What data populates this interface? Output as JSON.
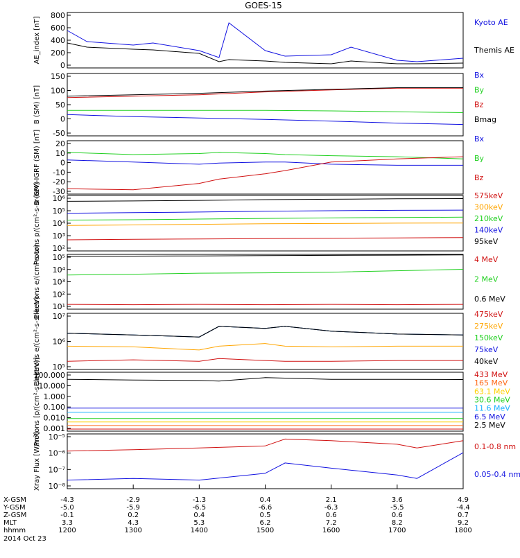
{
  "title": "GOES-15",
  "chart_data": [
    {
      "type": "line",
      "ylabel": "AE_index [nT]",
      "yticks": [
        "800",
        "600",
        "400",
        "200",
        "0"
      ],
      "ylim": [
        0,
        800
      ],
      "x": [
        1200,
        1230,
        1300,
        1330,
        1400,
        1430,
        1445,
        1500,
        1530,
        1600,
        1630,
        1700,
        1730,
        1800
      ],
      "series": [
        {
          "name": "Kyoto AE",
          "color": "#1010e0",
          "values": [
            540,
            380,
            330,
            360,
            250,
            150,
            650,
            250,
            170,
            190,
            300,
            110,
            90,
            140
          ]
        },
        {
          "name": "Themis AE",
          "color": "#000000",
          "values": [
            360,
            300,
            270,
            260,
            210,
            90,
            120,
            100,
            80,
            60,
            100,
            60,
            60,
            70
          ]
        }
      ]
    },
    {
      "type": "line",
      "ylabel": "B (SM) [nT]",
      "yticks": [
        "150",
        "100",
        "50",
        "0",
        "-50"
      ],
      "ylim": [
        -60,
        160
      ],
      "x": [
        1200,
        1300,
        1400,
        1500,
        1600,
        1700,
        1800
      ],
      "series": [
        {
          "name": "Bx",
          "color": "#1010e0",
          "values": [
            15,
            8,
            3,
            -2,
            -8,
            -15,
            -20
          ]
        },
        {
          "name": "By",
          "color": "#20d020",
          "values": [
            30,
            30,
            30,
            30,
            28,
            25,
            22
          ]
        },
        {
          "name": "Bz",
          "color": "#d01010",
          "values": [
            75,
            80,
            85,
            95,
            102,
            108,
            108
          ]
        },
        {
          "name": "Bmag",
          "color": "#000000",
          "values": [
            80,
            85,
            90,
            98,
            104,
            110,
            110
          ]
        }
      ]
    },
    {
      "type": "line",
      "ylabel": "B (SM)-IGRF (SM) [nT]",
      "yticks": [
        "20",
        "10",
        "0",
        "-10",
        "-20",
        "-30"
      ],
      "ylim": [
        -30,
        20
      ],
      "x": [
        1200,
        1300,
        1400,
        1430,
        1500,
        1530,
        1600,
        1700,
        1800
      ],
      "series": [
        {
          "name": "Bx",
          "color": "#1010e0",
          "values": [
            2,
            0,
            -2,
            -1,
            0,
            0,
            -2,
            -3,
            -3
          ]
        },
        {
          "name": "By",
          "color": "#20d020",
          "values": [
            9,
            7,
            8,
            9,
            8,
            7,
            6,
            5,
            3
          ]
        },
        {
          "name": "Bz",
          "color": "#d01010",
          "values": [
            -25,
            -26,
            -20,
            -16,
            -11,
            -8,
            0,
            3,
            5
          ]
        }
      ]
    },
    {
      "type": "line",
      "ylabel": "Protons p/(cm²-s-sr-keV)",
      "yscale": "log",
      "yticks": [
        "10⁶",
        "10⁵",
        "10⁴",
        "10³",
        "10²"
      ],
      "ylim": [
        1,
        6
      ],
      "x": [
        1200,
        1300,
        1400,
        1500,
        1600,
        1700,
        1800
      ],
      "series": [
        {
          "name": "575keV",
          "color": "#d01010",
          "values": [
            100,
            110,
            120,
            130,
            140,
            150,
            160
          ]
        },
        {
          "name": "300keV",
          "color": "#ffa500",
          "values": [
            2000,
            2200,
            2500,
            2800,
            3000,
            3200,
            3300
          ]
        },
        {
          "name": "210keV",
          "color": "#20d020",
          "values": [
            6000,
            6500,
            7500,
            8500,
            9500,
            10500,
            11000
          ]
        },
        {
          "name": "140keV",
          "color": "#1010e0",
          "values": [
            25000,
            28000,
            32000,
            38000,
            42000,
            46000,
            48000
          ]
        },
        {
          "name": "95keV",
          "color": "#000000",
          "values": [
            300000,
            320000,
            360000,
            420000,
            460000,
            500000,
            520000
          ]
        }
      ]
    },
    {
      "type": "line",
      "ylabel": "Electrons e/(cm²-s-sr)",
      "yscale": "log",
      "yticks": [
        "10⁵",
        "10⁴",
        "10³",
        "10²",
        "10¹"
      ],
      "ylim": [
        0.8,
        5.1
      ],
      "x": [
        1200,
        1300,
        1400,
        1500,
        1600,
        1700,
        1800
      ],
      "series": [
        {
          "name": "4 MeV",
          "color": "#d01010",
          "values": [
            15,
            14,
            15,
            14,
            15,
            14,
            15
          ]
        },
        {
          "name": "2 MeV",
          "color": "#20d020",
          "values": [
            3000,
            3500,
            4200,
            4500,
            5000,
            6500,
            8500
          ]
        },
        {
          "name": "0.6 MeV",
          "color": "#000000",
          "values": [
            90000,
            92000,
            95000,
            100000,
            105000,
            110000,
            115000
          ]
        }
      ]
    },
    {
      "type": "line",
      "ylabel": "Electrons e/(cm²-s-sr-keV)",
      "yscale": "log",
      "yticks": [
        "10⁷",
        "10⁶",
        "10⁵"
      ],
      "ylim": [
        4.4,
        7
      ],
      "x": [
        1200,
        1300,
        1400,
        1430,
        1500,
        1530,
        1600,
        1700,
        1800
      ],
      "series": [
        {
          "name": "475keV",
          "color": "#d01010",
          "values": [
            60000,
            70000,
            60000,
            80000,
            65000,
            60000,
            60000,
            65000,
            65000
          ]
        },
        {
          "name": "275keV",
          "color": "#ffa500",
          "values": [
            300000,
            280000,
            200000,
            300000,
            400000,
            300000,
            280000,
            300000,
            300000
          ]
        },
        {
          "name": "150keV",
          "color": "#20d020",
          "values": [
            1200000,
            1000000,
            800000,
            2500000,
            2000000,
            2500000,
            1500000,
            1100000,
            1000000
          ]
        },
        {
          "name": "75keV",
          "color": "#1010e0",
          "values": [
            1200000,
            1000000,
            800000,
            2500000,
            2000000,
            2500000,
            1500000,
            1100000,
            1000000
          ]
        },
        {
          "name": "40keV",
          "color": "#000000",
          "values": [
            1200000,
            1000000,
            800000,
            2500000,
            2000000,
            2500000,
            1500000,
            1100000,
            1000000
          ]
        }
      ]
    },
    {
      "type": "line",
      "ylabel": "Protons [p/(cm²-s-sr-keV)]",
      "yscale": "log",
      "yticks": [
        "100.000",
        "10.000",
        "1.000",
        "0.100",
        "0.010",
        "0.001"
      ],
      "ylim": [
        -3,
        2
      ],
      "x": [
        1200,
        1300,
        1400,
        1430,
        1500,
        1600,
        1700,
        1800
      ],
      "series": [
        {
          "name": "433 MeV",
          "color": "#d01010",
          "values": [
            0.0015,
            0.0015,
            0.0015,
            0.0015,
            0.0015,
            0.0015,
            0.0015,
            0.0015
          ]
        },
        {
          "name": "165 MeV",
          "color": "#ff6a1a",
          "values": [
            0.003,
            0.003,
            0.003,
            0.003,
            0.003,
            0.003,
            0.003,
            0.003
          ]
        },
        {
          "name": "63.1 MeV",
          "color": "#ffd000",
          "values": [
            0.006,
            0.006,
            0.006,
            0.006,
            0.006,
            0.006,
            0.006,
            0.006
          ]
        },
        {
          "name": "30.6 MeV",
          "color": "#20d020",
          "values": [
            0.012,
            0.012,
            0.012,
            0.012,
            0.012,
            0.012,
            0.012,
            0.012
          ]
        },
        {
          "name": "11.6 MeV",
          "color": "#1ab0ff",
          "values": [
            0.04,
            0.04,
            0.04,
            0.04,
            0.04,
            0.04,
            0.04,
            0.04
          ]
        },
        {
          "name": "6.5 MeV",
          "color": "#1010e0",
          "values": [
            0.09,
            0.09,
            0.09,
            0.09,
            0.09,
            0.09,
            0.09,
            0.09
          ]
        },
        {
          "name": "2.5 MeV",
          "color": "#000000",
          "values": [
            25,
            22,
            20,
            18,
            35,
            25,
            25,
            24
          ]
        }
      ]
    },
    {
      "type": "line",
      "ylabel": "Xray Flux [W/m²]",
      "yscale": "log",
      "yticks": [
        "10⁻⁵",
        "10⁻⁶",
        "10⁻⁷",
        "10⁻⁸"
      ],
      "ylim": [
        -8.2,
        -5
      ],
      "x": [
        1200,
        1300,
        1400,
        1500,
        1530,
        1600,
        1700,
        1730,
        1800
      ],
      "series": [
        {
          "name": "0.1-0.8 nm",
          "color": "#d01010",
          "values": [
            1e-06,
            1.2e-06,
            1.5e-06,
            2e-06,
            5e-06,
            4e-06,
            2.5e-06,
            1.5e-06,
            4e-06
          ]
        },
        {
          "name": "0.05-0.4 nm",
          "color": "#1010e0",
          "values": [
            2e-08,
            2.5e-08,
            2e-08,
            5e-08,
            2e-07,
            1e-07,
            4e-08,
            2.5e-08,
            8e-07
          ]
        }
      ]
    }
  ],
  "xaxis": {
    "xlim": [
      1200,
      1800
    ],
    "rows": [
      {
        "label": "X-GSM",
        "values": [
          "-4.3",
          "-2.9",
          "-1.3",
          "0.4",
          "2.1",
          "3.6",
          "4.9"
        ]
      },
      {
        "label": "Y-GSM",
        "values": [
          "-5.0",
          "-5.9",
          "-6.5",
          "-6.6",
          "-6.3",
          "-5.5",
          "-4.4"
        ]
      },
      {
        "label": "Z-GSM",
        "values": [
          "-0.1",
          "0.2",
          "0.4",
          "0.5",
          "0.6",
          "0.6",
          "0.7"
        ]
      },
      {
        "label": "MLT",
        "values": [
          "3.3",
          "4.3",
          "5.3",
          "6.2",
          "7.2",
          "8.2",
          "9.2"
        ]
      },
      {
        "label": "hhmm",
        "values": [
          "1200",
          "1300",
          "1400",
          "1500",
          "1600",
          "1700",
          "1800"
        ]
      }
    ],
    "date": "2014 Oct 23"
  }
}
